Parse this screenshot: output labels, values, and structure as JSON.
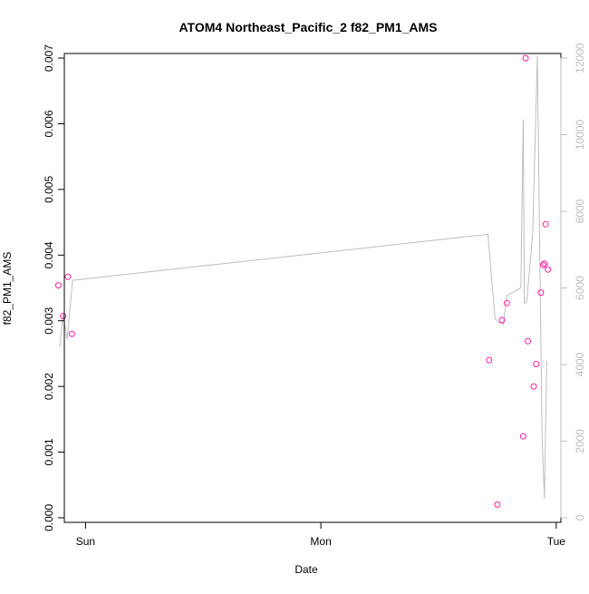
{
  "chart_data": {
    "type": "scatter",
    "title": "ATOM4 Northeast_Pacific_2 f82_PM1_AMS",
    "xlabel": "Date",
    "ylabel": "f82_PM1_AMS",
    "x_ticks": [
      {
        "value": 0.0,
        "label": "Sun"
      },
      {
        "value": 1.0,
        "label": "Mon"
      },
      {
        "value": 2.0,
        "label": "Tue"
      }
    ],
    "xlim": [
      -0.09,
      2.02
    ],
    "ylim": [
      -7e-05,
      0.00707
    ],
    "y_ticks": [
      0.0,
      0.001,
      0.002,
      0.003,
      0.004,
      0.005,
      0.006,
      0.007
    ],
    "y_tick_labels": [
      "0.000",
      "0.001",
      "0.002",
      "0.003",
      "0.004",
      "0.005",
      "0.006",
      "0.007"
    ],
    "y2lim": [
      -120,
      12120
    ],
    "y2_ticks": [
      0,
      2000,
      4000,
      6000,
      8000,
      10000,
      12000
    ],
    "y2_tick_labels": [
      "0",
      "2000",
      "4000",
      "6000",
      "8000",
      "10000",
      "12000"
    ],
    "colors": {
      "points": "#ff1aa8",
      "line": "#bdbdbd",
      "axis": "#000000",
      "right_axis": "#bdbdbd"
    },
    "series": [
      {
        "type": "points",
        "x": [
          -0.115,
          -0.095,
          -0.075,
          -0.058,
          1.715,
          1.75,
          1.77,
          1.79,
          1.86,
          1.87,
          1.88,
          1.905,
          1.915,
          1.935,
          1.945,
          1.95,
          1.955,
          1.965
        ],
        "values": [
          0.00354,
          0.00307,
          0.00367,
          0.0028,
          0.0024,
          0.0002,
          0.00301,
          0.00327,
          0.00124,
          0.007,
          0.00269,
          0.002,
          0.00234,
          0.00343,
          0.00385,
          0.00387,
          0.00447,
          0.00378
        ]
      },
      {
        "type": "line",
        "x": [
          -0.11,
          -0.095,
          -0.078,
          -0.055,
          1.71,
          1.74,
          1.755,
          1.775,
          1.79,
          1.85,
          1.86,
          1.865,
          1.875,
          1.9,
          1.92,
          1.94,
          1.95,
          1.96
        ],
        "values": [
          4450,
          5300,
          4650,
          6200,
          7400,
          5200,
          5100,
          5050,
          5800,
          6000,
          10400,
          5600,
          5650,
          7400,
          12050,
          2100,
          500,
          4100
        ]
      }
    ]
  }
}
